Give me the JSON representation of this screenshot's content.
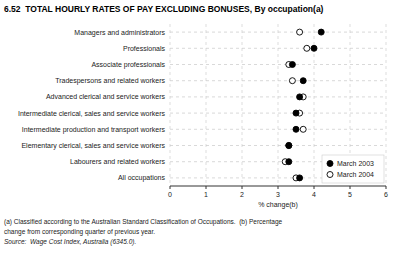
{
  "chart_data": {
    "type": "dot",
    "orientation": "horizontal",
    "title": "6.52  TOTAL HOURLY RATES OF PAY EXCLUDING BONUSES, By occupation(a)",
    "categories": [
      "Managers and administrators",
      "Professionals",
      "Associate professionals",
      "Tradespersons and related workers",
      "Advanced clerical and service workers",
      "Intermediate clerical, sales and service workers",
      "Intermediate production and transport workers",
      "Elementary clerical, sales and service workers",
      "Labourers and related workers",
      "All occupations"
    ],
    "series": [
      {
        "name": "March 2003",
        "color": "#000000",
        "marker": "filled-circle",
        "values": [
          4.2,
          4.0,
          3.4,
          3.7,
          3.6,
          3.5,
          3.5,
          3.3,
          3.3,
          3.6
        ]
      },
      {
        "name": "March 2004",
        "color": "#000000",
        "marker": "open-circle",
        "values": [
          3.6,
          3.8,
          3.3,
          3.4,
          3.7,
          3.6,
          3.7,
          3.3,
          3.2,
          3.5
        ]
      }
    ],
    "xlabel": "% change(b)",
    "xlim": [
      0,
      6
    ],
    "xticks": [
      0,
      1,
      2,
      3,
      4,
      5,
      6
    ],
    "grid": true,
    "legend": "lower right",
    "annotations": [
      "(a) Classified according to the Australian Standard Classification of Occupations.  (b) Percentage",
      "change from corresponding quarter of previous year.",
      "Source:  Wage Cost Index, Australia (6345.0)."
    ]
  }
}
